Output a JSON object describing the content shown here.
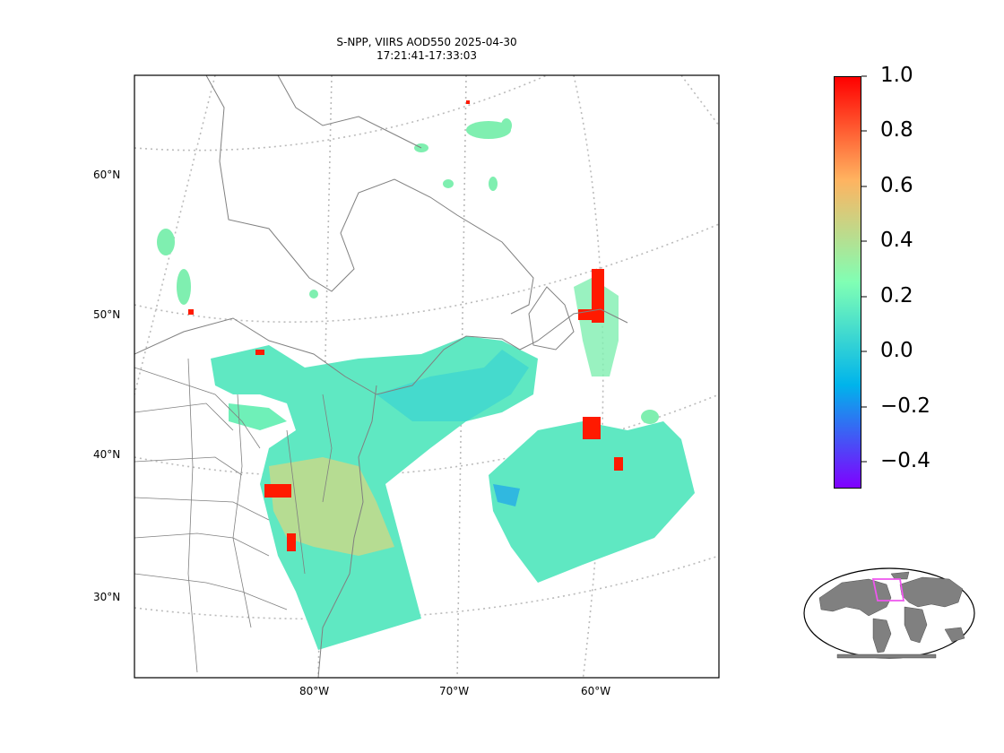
{
  "title": {
    "line1": "S-NPP, VIIRS AOD550 2025-04-30",
    "line2": "17:21:41-17:33:03"
  },
  "map": {
    "projection": "conic",
    "gridlines": true,
    "lat_labels": [
      "60°N",
      "50°N",
      "40°N",
      "30°N"
    ],
    "lon_labels": [
      "80°W",
      "70°W",
      "60°W"
    ],
    "coastline_color": "#808080",
    "gridline_color": "#bbbbbb"
  },
  "colorbar": {
    "colormap": "rainbow",
    "vmin": -0.5,
    "vmax": 1.0,
    "ticks": [
      "1.0",
      "0.8",
      "0.6",
      "0.4",
      "0.2",
      "0.0",
      "−0.2",
      "−0.4"
    ],
    "colors": [
      "#8000ff",
      "#00b4eb",
      "#80ffb4",
      "#ffb360",
      "#ff0000"
    ]
  },
  "inset": {
    "type": "world-locator",
    "land_color": "#808080",
    "box_color": "#ee55ee"
  }
}
